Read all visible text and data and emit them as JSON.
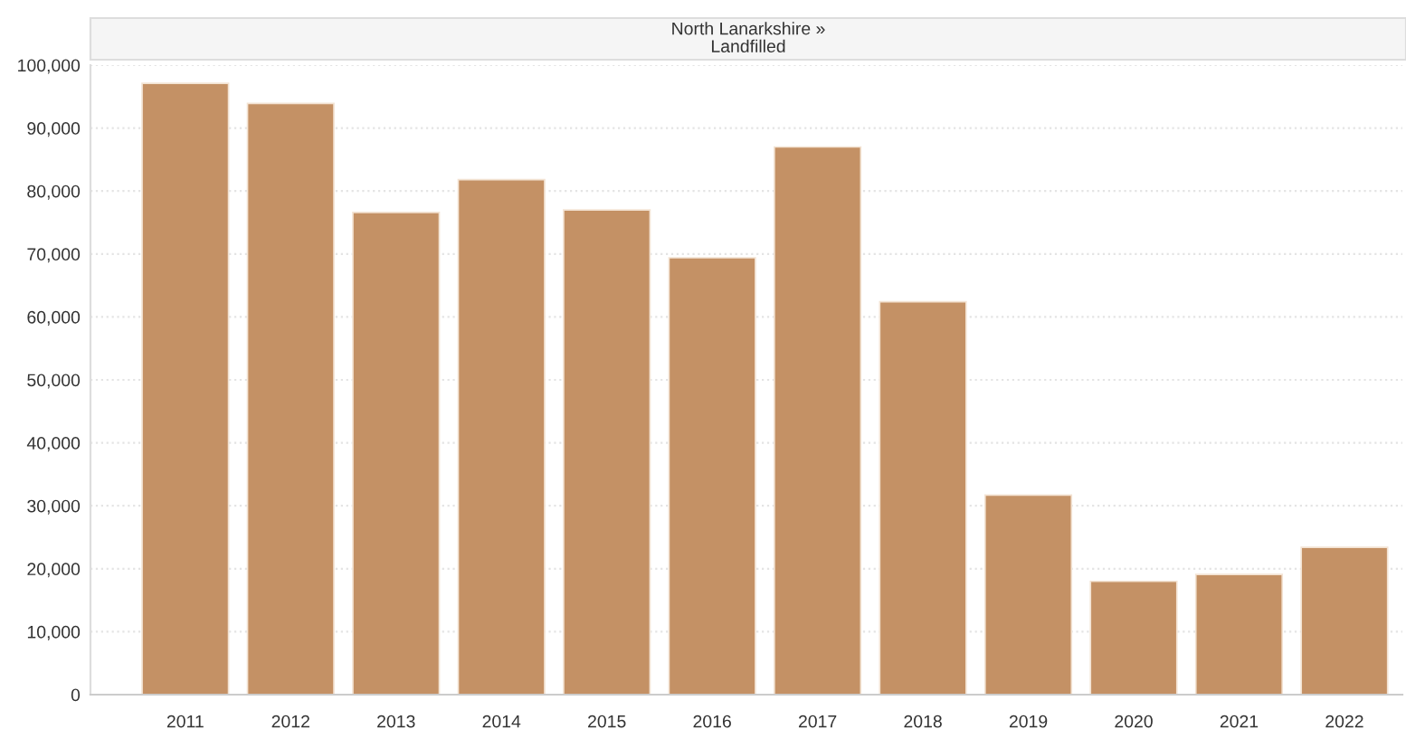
{
  "chart_data": {
    "type": "bar",
    "title": "North Lanarkshire »\nLandfilled",
    "categories": [
      "2011",
      "2012",
      "2013",
      "2014",
      "2015",
      "2016",
      "2017",
      "2018",
      "2019",
      "2020",
      "2021",
      "2022"
    ],
    "values": [
      97100,
      93900,
      76600,
      81800,
      77000,
      69400,
      87000,
      62400,
      31700,
      18000,
      19100,
      23400
    ],
    "color": "#c49165",
    "ylim": [
      0,
      100000
    ],
    "yticks": [
      {
        "value": 0,
        "label": "0"
      },
      {
        "value": 10000,
        "label": "10,000"
      },
      {
        "value": 20000,
        "label": "20,000"
      },
      {
        "value": 30000,
        "label": "30,000"
      },
      {
        "value": 40000,
        "label": "40,000"
      },
      {
        "value": 50000,
        "label": "50,000"
      },
      {
        "value": 60000,
        "label": "60,000"
      },
      {
        "value": 70000,
        "label": "70,000"
      },
      {
        "value": 80000,
        "label": "80,000"
      },
      {
        "value": 90000,
        "label": "90,000"
      },
      {
        "value": 100000,
        "label": "100,000"
      }
    ],
    "grid": "y"
  }
}
